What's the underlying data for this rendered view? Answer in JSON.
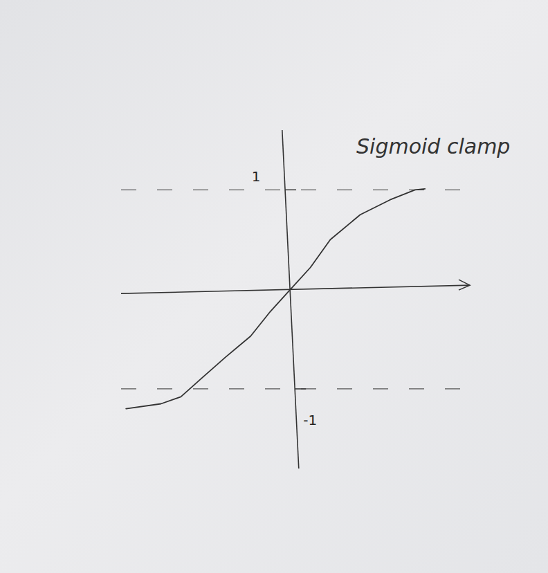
{
  "chart_data": {
    "type": "line",
    "title": "Sigmoid clamp",
    "x": [
      -1.65,
      -1.3,
      -1.1,
      -0.9,
      -0.65,
      -0.4,
      -0.2,
      0,
      0.2,
      0.4,
      0.7,
      1.0,
      1.25,
      1.35
    ],
    "values": [
      -1.2,
      -1.15,
      -1.08,
      -0.9,
      -0.68,
      -0.47,
      -0.22,
      0,
      0.22,
      0.5,
      0.75,
      0.9,
      1.0,
      1.01
    ],
    "color": "#333333",
    "xlim": [
      -1.7,
      1.8
    ],
    "ylim": [
      -1.8,
      1.6
    ],
    "yticks": [
      -1,
      1
    ],
    "grid": true,
    "tick_labels": "y"
  }
}
